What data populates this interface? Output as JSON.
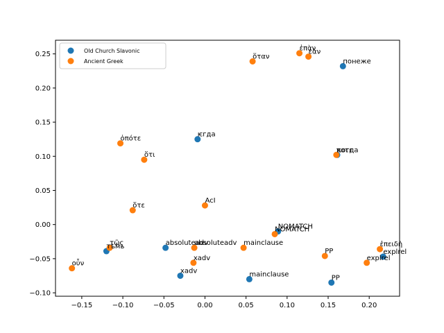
{
  "chart_data": {
    "type": "scatter",
    "title": "",
    "xlabel": "",
    "ylabel": "",
    "xlim": [
      -0.182,
      0.237
    ],
    "ylim": [
      -0.105,
      0.27
    ],
    "grid": false,
    "legend_position": "top-left",
    "x_ticks": [
      -0.15,
      -0.1,
      -0.05,
      0.0,
      0.05,
      0.1,
      0.15,
      0.2
    ],
    "x_tick_labels": [
      "−0.15",
      "−0.10",
      "−0.05",
      "0.00",
      "0.05",
      "0.10",
      "0.15",
      "0.20"
    ],
    "y_ticks": [
      -0.1,
      -0.05,
      0.0,
      0.05,
      0.1,
      0.15,
      0.2,
      0.25
    ],
    "y_tick_labels": [
      "−0.10",
      "−0.05",
      "0.00",
      "0.05",
      "0.10",
      "0.15",
      "0.20",
      "0.25"
    ],
    "series": [
      {
        "name": "Old Church Slavonic",
        "color": "#1f77b4",
        "points": [
          {
            "x": 0.168,
            "y": 0.232,
            "label": "понеже"
          },
          {
            "x": -0.009,
            "y": 0.125,
            "label": "ѥгда"
          },
          {
            "x": 0.161,
            "y": 0.102,
            "label": "когда"
          },
          {
            "x": 0.089,
            "y": -0.01,
            "label": "NOMATCH"
          },
          {
            "x": -0.12,
            "y": -0.039,
            "label": "тѣмь"
          },
          {
            "x": -0.048,
            "y": -0.034,
            "label": "absoluteadv"
          },
          {
            "x": -0.03,
            "y": -0.075,
            "label": "xadv"
          },
          {
            "x": 0.054,
            "y": -0.08,
            "label": "mainclause"
          },
          {
            "x": 0.154,
            "y": -0.085,
            "label": "PP"
          },
          {
            "x": 0.217,
            "y": -0.047,
            "label": "explrel"
          }
        ]
      },
      {
        "name": "Ancient Greek",
        "color": "#ff7f0e",
        "points": [
          {
            "x": 0.115,
            "y": 0.251,
            "label": "ἐπὰν"
          },
          {
            "x": 0.126,
            "y": 0.246,
            "label": "ἐὰν"
          },
          {
            "x": 0.058,
            "y": 0.239,
            "label": "ὅταν"
          },
          {
            "x": -0.103,
            "y": 0.119,
            "label": "ὁπότε"
          },
          {
            "x": -0.074,
            "y": 0.095,
            "label": "ὅτι"
          },
          {
            "x": 0.16,
            "y": 0.102,
            "label": "ποτε"
          },
          {
            "x": -0.088,
            "y": 0.021,
            "label": "ὅτε"
          },
          {
            "x": 0.0,
            "y": 0.028,
            "label": "AcI"
          },
          {
            "x": 0.085,
            "y": -0.014,
            "label": "NOMATCH"
          },
          {
            "x": -0.116,
            "y": -0.034,
            "label": "τῶς"
          },
          {
            "x": -0.013,
            "y": -0.034,
            "label": "absoluteadv"
          },
          {
            "x": 0.047,
            "y": -0.034,
            "label": "mainclause"
          },
          {
            "x": -0.014,
            "y": -0.056,
            "label": "xadv"
          },
          {
            "x": -0.162,
            "y": -0.064,
            "label": "οὖν"
          },
          {
            "x": 0.146,
            "y": -0.046,
            "label": "PP"
          },
          {
            "x": 0.213,
            "y": -0.036,
            "label": "ἐπειδὴ"
          },
          {
            "x": 0.197,
            "y": -0.056,
            "label": "explrel"
          }
        ]
      }
    ]
  }
}
